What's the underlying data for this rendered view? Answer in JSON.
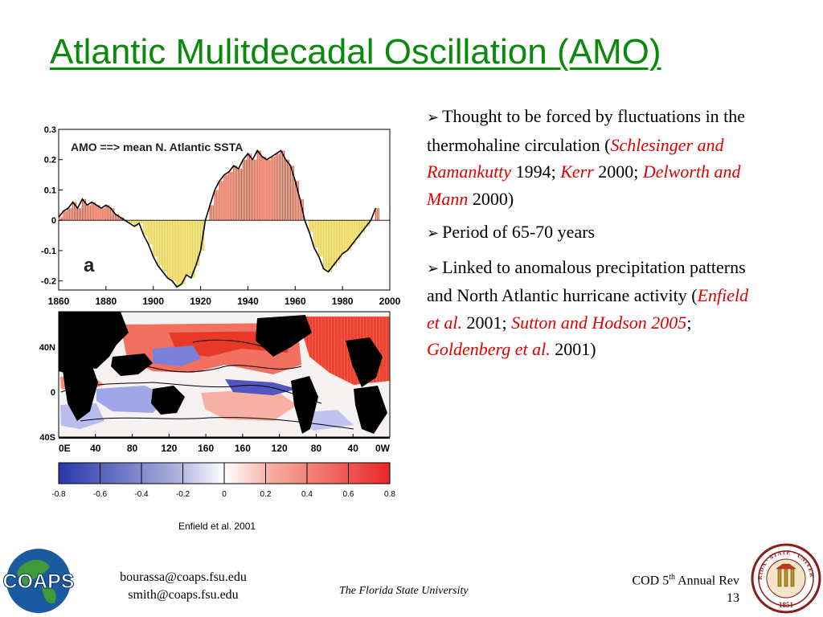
{
  "title": "Atlantic Mulitdecadal Oscillation (AMO)",
  "chart_data": [
    {
      "type": "area",
      "title": "AMO ==> mean N. Atlantic SSTA",
      "panel_label": "a",
      "x_ticks": [
        "1860",
        "1880",
        "1900",
        "1920",
        "1940",
        "1960",
        "1980",
        "2000"
      ],
      "y_ticks": [
        "0.3",
        "0.2",
        "0.1",
        "0",
        "-0.1",
        "-0.2"
      ],
      "xlim": [
        1860,
        2000
      ],
      "ylim": [
        -0.23,
        0.3
      ],
      "positive_color": "#e84a2a",
      "negative_color": "#e9c820",
      "x": [
        1860,
        1862,
        1864,
        1866,
        1868,
        1870,
        1872,
        1874,
        1876,
        1878,
        1880,
        1882,
        1884,
        1886,
        1888,
        1890,
        1892,
        1894,
        1896,
        1898,
        1900,
        1902,
        1904,
        1906,
        1908,
        1910,
        1912,
        1914,
        1916,
        1918,
        1920,
        1922,
        1924,
        1926,
        1928,
        1930,
        1932,
        1934,
        1936,
        1938,
        1940,
        1942,
        1944,
        1946,
        1948,
        1950,
        1952,
        1954,
        1956,
        1958,
        1960,
        1962,
        1964,
        1966,
        1968,
        1970,
        1972,
        1974,
        1976,
        1978,
        1980,
        1982,
        1984,
        1986,
        1988,
        1990,
        1992,
        1994
      ],
      "y": [
        0.01,
        0.03,
        0.04,
        0.06,
        0.04,
        0.07,
        0.05,
        0.06,
        0.05,
        0.04,
        0.05,
        0.04,
        0.02,
        0.01,
        0.0,
        -0.01,
        -0.02,
        -0.01,
        -0.05,
        -0.08,
        -0.12,
        -0.15,
        -0.17,
        -0.19,
        -0.2,
        -0.22,
        -0.21,
        -0.18,
        -0.19,
        -0.15,
        -0.1,
        0.0,
        0.05,
        0.1,
        0.13,
        0.15,
        0.16,
        0.18,
        0.17,
        0.2,
        0.22,
        0.2,
        0.23,
        0.21,
        0.2,
        0.21,
        0.22,
        0.23,
        0.2,
        0.18,
        0.13,
        0.07,
        0.0,
        -0.04,
        -0.09,
        -0.12,
        -0.16,
        -0.17,
        -0.15,
        -0.13,
        -0.11,
        -0.1,
        -0.08,
        -0.06,
        -0.04,
        -0.02,
        0.0,
        0.04
      ]
    },
    {
      "type": "heatmap",
      "x_ticks": [
        "0E",
        "40",
        "80",
        "120",
        "160",
        "160",
        "120",
        "80",
        "40",
        "0W"
      ],
      "y_ticks": [
        "40N",
        "0",
        "40S"
      ],
      "colorbar_ticks": [
        "-0.8",
        "-0.6",
        "-0.4",
        "-0.2",
        "0",
        "0.2",
        "0.4",
        "0.6",
        "0.8"
      ],
      "colorbar_range": [
        -0.8,
        0.8
      ],
      "negative_color": "#2838a8",
      "positive_color": "#e82828",
      "land_color": "#000000"
    }
  ],
  "credit": "Enfield et al. 2001",
  "bullets": [
    {
      "arrow": "➢",
      "segments": [
        {
          "text": "Thought to be forced by fluctuations in the thermohaline circulation (",
          "style": "normal"
        },
        {
          "text": "Schlesinger and Ramankutty",
          "style": "red"
        },
        {
          "text": " 1994; ",
          "style": "normal"
        },
        {
          "text": "Kerr",
          "style": "red"
        },
        {
          "text": " 2000; ",
          "style": "normal"
        },
        {
          "text": "Delworth and Mann",
          "style": "red"
        },
        {
          "text": " 2000)",
          "style": "normal"
        }
      ]
    },
    {
      "arrow": "➢",
      "segments": [
        {
          "text": "Period of 65-70 years",
          "style": "normal"
        }
      ]
    },
    {
      "arrow": "➢",
      "segments": [
        {
          "text": "Linked to anomalous precipitation patterns and North Atlantic hurricane activity (",
          "style": "normal"
        },
        {
          "text": "Enfield et al.",
          "style": "red"
        },
        {
          "text": " 2001; ",
          "style": "normal"
        },
        {
          "text": "Sutton and Hodson 2005",
          "style": "red"
        },
        {
          "text": "; ",
          "style": "normal"
        },
        {
          "text": "Goldenberg et al.",
          "style": "red"
        },
        {
          "text": " 2001)",
          "style": "normal"
        }
      ]
    }
  ],
  "footer": {
    "email_1": "bourassa@coaps.fsu.edu",
    "email_2": "smith@coaps.fsu.edu",
    "university": "The Florida State University",
    "conf_prefix": "COD 5",
    "conf_sup": "th",
    "conf_suffix": " Annual Rev",
    "page_number": "13"
  },
  "logos": {
    "coaps_text": "COAPS",
    "seal_top_text": "FLORIDA · STATE · UNIVERSITY",
    "seal_year": "1851"
  }
}
